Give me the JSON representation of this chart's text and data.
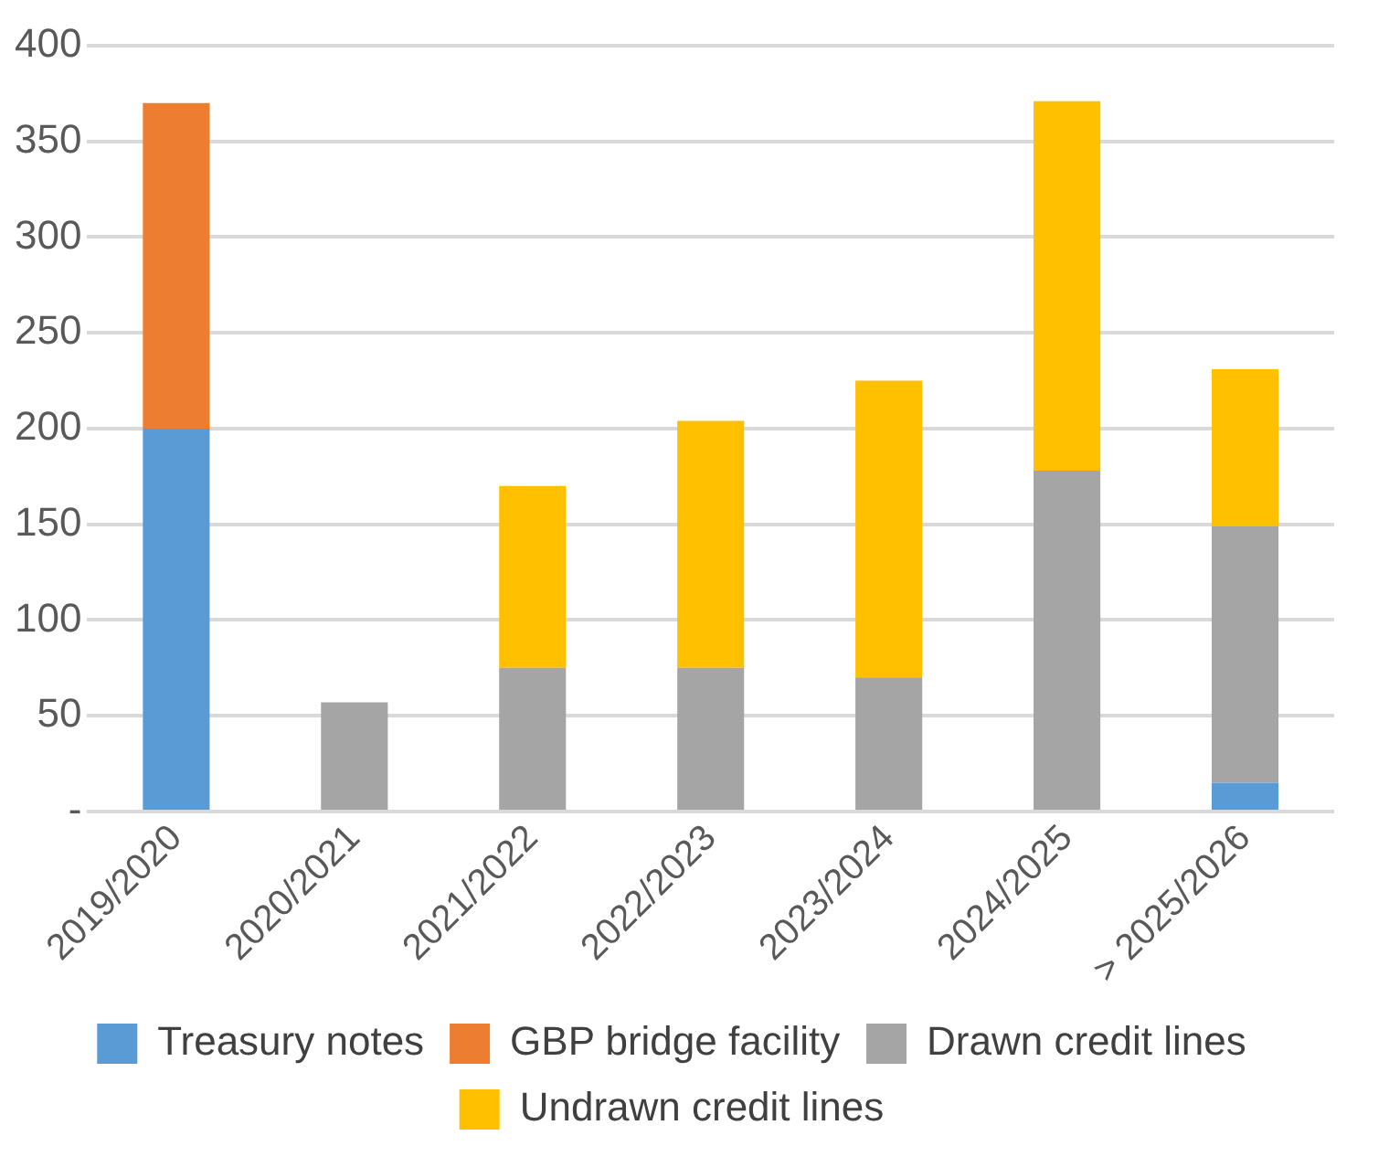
{
  "chart_data": {
    "type": "bar",
    "stacked": true,
    "categories": [
      "2019/2020",
      "2020/2021",
      "2021/2022",
      "2022/2023",
      "2023/2024",
      "2024/2025",
      "> 2025/2026"
    ],
    "series": [
      {
        "name": "Treasury notes",
        "color": "#5b9bd5",
        "values": [
          200,
          null,
          null,
          null,
          null,
          null,
          15
        ]
      },
      {
        "name": "GBP bridge facility",
        "color": "#ed7d31",
        "values": [
          170,
          null,
          null,
          null,
          null,
          null,
          null
        ]
      },
      {
        "name": "Drawn credit lines",
        "color": "#a5a5a5",
        "values": [
          null,
          57,
          75,
          75,
          70,
          178,
          134
        ]
      },
      {
        "name": "Undrawn credit lines",
        "color": "#ffc000",
        "values": [
          null,
          null,
          95,
          129,
          155,
          193,
          82
        ]
      }
    ],
    "ylim": [
      0,
      400
    ],
    "yticks": [
      {
        "value": 0,
        "label": "-"
      },
      50,
      100,
      150,
      200,
      250,
      300,
      350,
      400
    ],
    "grid": "y",
    "legend": "bottom"
  }
}
